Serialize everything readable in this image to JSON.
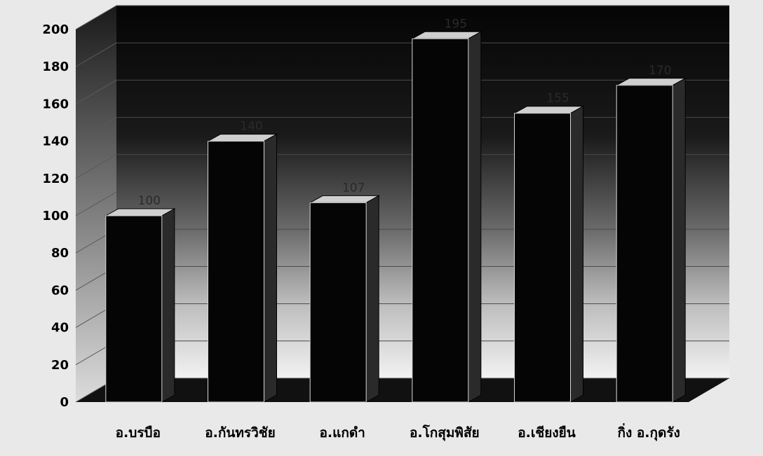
{
  "chart_data": {
    "type": "bar",
    "style": "3d",
    "categories": [
      "อ.บรบือ",
      "อ.กันทรวิชัย",
      "อ.แกดำ",
      "อ.โกสุมพิสัย",
      "อ.เชียงยืน",
      "กิ่ง อ.กุดรัง"
    ],
    "values": [
      100,
      140,
      107,
      195,
      155,
      170
    ],
    "data_labels": [
      "100",
      "140",
      "107",
      "195",
      "155",
      "170"
    ],
    "ylim": [
      0,
      200
    ],
    "yticks": [
      "0",
      "20",
      "40",
      "60",
      "80",
      "100",
      "120",
      "140",
      "160",
      "180",
      "200"
    ],
    "grid": true,
    "colors": {
      "bar": "#050505",
      "wall_dark": "#0a0a0a",
      "floor": "#111111",
      "background": "#e9e9e9"
    }
  }
}
